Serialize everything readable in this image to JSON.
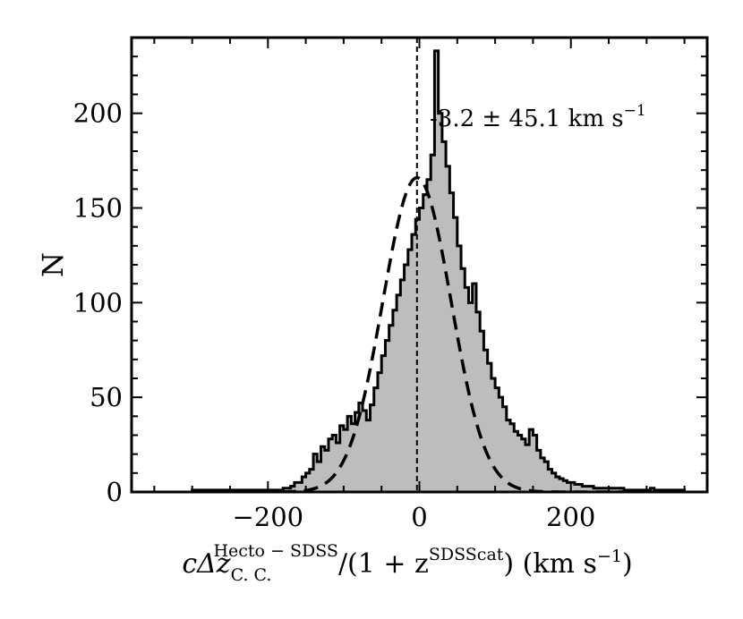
{
  "chart_data": {
    "type": "histogram",
    "xlim": [
      -380,
      380
    ],
    "ylim": [
      0,
      240
    ],
    "x_ticks": [
      -200,
      0,
      200
    ],
    "x_tick_labels": [
      "−200",
      "0",
      "200"
    ],
    "y_ticks": [
      0,
      50,
      100,
      150,
      200
    ],
    "y_tick_labels": [
      "0",
      "50",
      "100",
      "150",
      "200"
    ],
    "ylabel": "N",
    "xlabel": {
      "prefix": "cΔz",
      "sub": "C. C.",
      "sup": "Hecto − SDSS",
      "middle": "/(1 + z",
      "sup2": "SDSScat",
      "suffix": ") (km s",
      "suffix_sup": "−1",
      "end": ")"
    },
    "annotation": {
      "text": "-3.2 ± 45.1 km s",
      "sup": "−1"
    },
    "histogram": {
      "bin_start": -300,
      "bin_width": 5,
      "counts": [
        1,
        1,
        1,
        1,
        1,
        1,
        1,
        1,
        1,
        1,
        1,
        1,
        1,
        1,
        1,
        1,
        1,
        1,
        1,
        1,
        1,
        1,
        1,
        1,
        2,
        2,
        3,
        5,
        5,
        8,
        10,
        12,
        20,
        16,
        24,
        22,
        28,
        30,
        26,
        35,
        33,
        40,
        36,
        42,
        47,
        43,
        38,
        46,
        55,
        63,
        72,
        80,
        88,
        96,
        104,
        112,
        120,
        128,
        136,
        144,
        150,
        157,
        165,
        178,
        233,
        200,
        185,
        172,
        158,
        145,
        130,
        118,
        108,
        100,
        110,
        95,
        85,
        75,
        68,
        60,
        55,
        50,
        45,
        38,
        36,
        32,
        30,
        28,
        25,
        33,
        30,
        22,
        18,
        16,
        12,
        10,
        8,
        7,
        6,
        5,
        5,
        4,
        4,
        3,
        3,
        3,
        2,
        2,
        2,
        2,
        2,
        2,
        2,
        2,
        1,
        1,
        1,
        1,
        1,
        1,
        1,
        2,
        1,
        1,
        1,
        1,
        1,
        1,
        1,
        1
      ]
    },
    "gaussian_fit": {
      "mean": -3.2,
      "sigma": 45.1,
      "amplitude": 166
    },
    "vertical_line_x": -3.2,
    "colors": {
      "fill": "#bdbdbd",
      "stroke": "#000000",
      "fit": "#000000"
    }
  }
}
